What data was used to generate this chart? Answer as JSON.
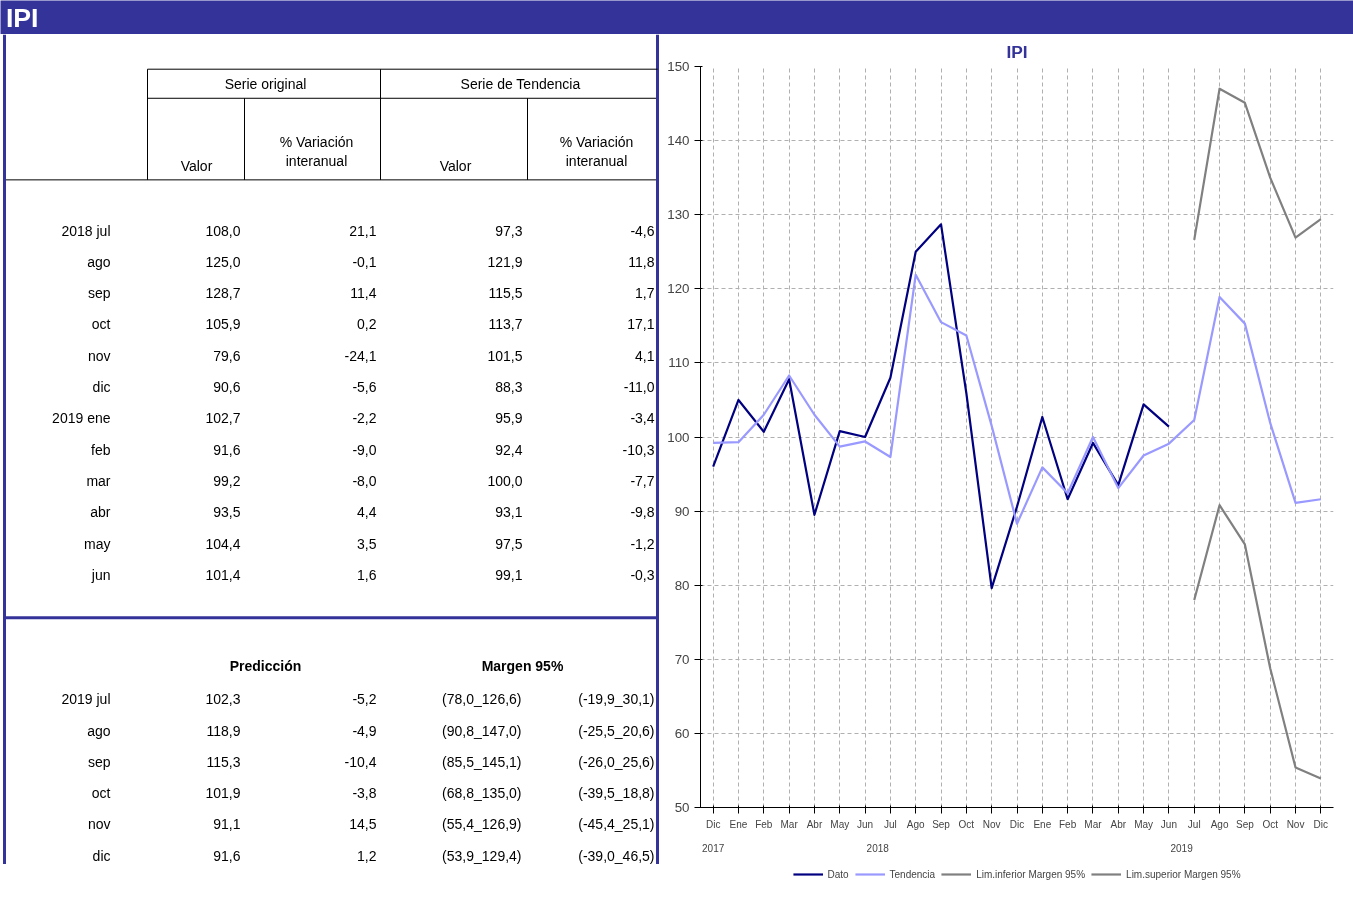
{
  "chart_data": [
    {
      "type": "other",
      "title": "IPI",
      "annotations": [
        "Serie original",
        "Serie de Tendencia",
        "Valor",
        "% Variación\ninteranual",
        "Valor",
        "% Variación\ninteranual",
        "2018 jul",
        "108,0",
        "21,1",
        "97,3",
        "-4,6",
        "ago",
        "125,0",
        "-0,1",
        "121,9",
        "11,8",
        "sep",
        "128,7",
        "11,4",
        "115,5",
        "1,7",
        "oct",
        "105,9",
        "0,2",
        "113,7",
        "17,1",
        "nov",
        "79,6",
        "-24,1",
        "101,5",
        "4,1",
        "dic",
        "90,6",
        "-5,6",
        "88,3",
        "-11,0",
        "2019 ene",
        "102,7",
        "-2,2",
        "95,9",
        "-3,4",
        "feb",
        "91,6",
        "-9,0",
        "92,4",
        "-10,3",
        "mar",
        "99,2",
        "-8,0",
        "100,0",
        "-7,7",
        "abr",
        "93,5",
        "4,4",
        "93,1",
        "-9,8",
        "may",
        "104,4",
        "3,5",
        "97,5",
        "-1,2",
        "jun",
        "101,4",
        "1,6",
        "99,1",
        "-0,3",
        "Predicción",
        "Margen 95%",
        "2019 jul",
        "102,3",
        "-5,2",
        "(78,0_126,6)",
        "(-19,9_30,1)",
        "ago",
        "118,9",
        "-4,9",
        "(90,8_147,0)",
        "(-25,5_20,6)",
        "sep",
        "115,3",
        "-10,4",
        "(85,5_145,1)",
        "(-26,0_25,6)",
        "oct",
        "101,9",
        "-3,8",
        "(68,8_135,0)",
        "(-39,5_18,8)",
        "nov",
        "91,1",
        "14,5",
        "(55,4_126,9)",
        "(-45,4_25,1)",
        "dic",
        "91,6",
        "1,2",
        "(53,9_129,4)",
        "(-39,0_46,5)"
      ]
    },
    {
      "type": "line",
      "title": "IPI",
      "categories": [
        "Dic",
        "Ene",
        "Feb",
        "Mar",
        "Abr",
        "May",
        "Jun",
        "Jul",
        "Ago",
        "Sep",
        "Oct",
        "Nov",
        "Dic",
        "Ene",
        "Feb",
        "Mar",
        "Abr",
        "May",
        "Jun",
        "Jul",
        "Ago",
        "Sep",
        "Oct",
        "Nov",
        "Dic"
      ],
      "annotations": [
        "2017",
        "2018",
        "2019"
      ],
      "ylim": [
        50,
        150
      ],
      "yticks": [
        50,
        60,
        70,
        80,
        90,
        100,
        110,
        120,
        130,
        140,
        150
      ],
      "grid": true,
      "legend": "bottom",
      "line_style": "solid",
      "series": [
        {
          "name": "Dato",
          "color": "#000080",
          "values": [
            96.0,
            105.0,
            100.7,
            107.8,
            89.5,
            100.8,
            100.0,
            108.0,
            125.0,
            128.7,
            105.9,
            79.6,
            90.6,
            102.7,
            91.6,
            99.2,
            93.5,
            104.4,
            101.4,
            null,
            null,
            null,
            null,
            null,
            null
          ]
        },
        {
          "name": "Tendencia",
          "color": "#9999ff",
          "values": [
            99.2,
            99.3,
            103.0,
            108.3,
            103.0,
            98.7,
            99.4,
            97.3,
            121.9,
            115.5,
            113.7,
            101.5,
            88.3,
            95.9,
            92.4,
            100.0,
            93.1,
            97.5,
            99.1,
            102.3,
            118.9,
            115.3,
            101.9,
            91.1,
            91.6
          ]
        },
        {
          "name": "Lim.inferior Margen 95%",
          "color": "#808080",
          "values": [
            null,
            null,
            null,
            null,
            null,
            null,
            null,
            null,
            null,
            null,
            null,
            null,
            null,
            null,
            null,
            null,
            null,
            null,
            null,
            78.0,
            90.8,
            85.5,
            68.8,
            55.4,
            53.9
          ]
        },
        {
          "name": "Lim.superior Margen 95%",
          "color": "#808080",
          "values": [
            null,
            null,
            null,
            null,
            null,
            null,
            null,
            null,
            null,
            null,
            null,
            null,
            null,
            null,
            null,
            null,
            null,
            null,
            null,
            126.6,
            147.0,
            145.1,
            135.0,
            126.9,
            129.4
          ]
        }
      ]
    }
  ]
}
